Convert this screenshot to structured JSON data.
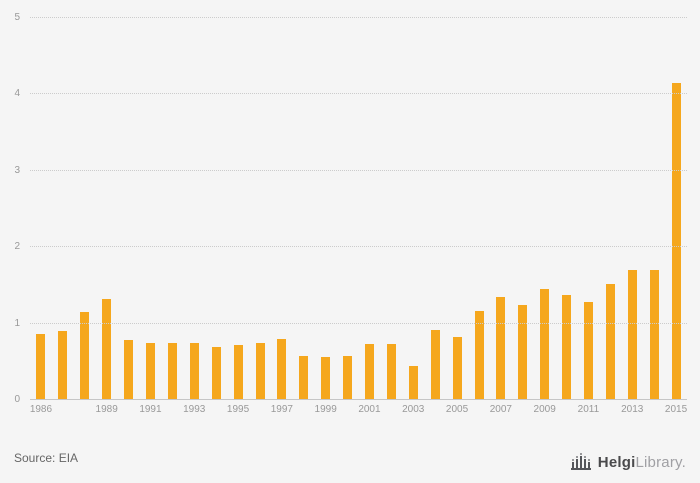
{
  "chart_data": {
    "type": "bar",
    "title": "",
    "xlabel": "",
    "ylabel": "",
    "ylim": [
      0,
      5
    ],
    "y_ticks": [
      0,
      1,
      2,
      3,
      4,
      5
    ],
    "grid": true,
    "legend": "none",
    "bar_color": "#F5A71D",
    "categories": [
      "1986",
      "1987",
      "1988",
      "1989",
      "1990",
      "1991",
      "1992",
      "1993",
      "1994",
      "1995",
      "1996",
      "1997",
      "1998",
      "1999",
      "2000",
      "2001",
      "2002",
      "2003",
      "2004",
      "2005",
      "2006",
      "2007",
      "2008",
      "2009",
      "2010",
      "2011",
      "2012",
      "2013",
      "2014",
      "2015"
    ],
    "values": [
      0.87,
      0.9,
      1.15,
      1.32,
      0.78,
      0.75,
      0.75,
      0.75,
      0.7,
      0.72,
      0.75,
      0.8,
      0.57,
      0.56,
      0.58,
      0.73,
      0.73,
      0.45,
      0.92,
      0.82,
      1.17,
      1.35,
      1.24,
      1.45,
      1.38,
      1.28,
      1.52,
      1.7,
      1.7,
      4.15
    ],
    "x_tick_labels": [
      "1986",
      "1989",
      "1991",
      "1993",
      "1995",
      "1997",
      "1999",
      "2001",
      "2003",
      "2005",
      "2007",
      "2009",
      "2011",
      "2013",
      "2015"
    ]
  },
  "footer": {
    "source": "Source: EIA",
    "logo_primary": "Helgi",
    "logo_secondary": "Library."
  }
}
